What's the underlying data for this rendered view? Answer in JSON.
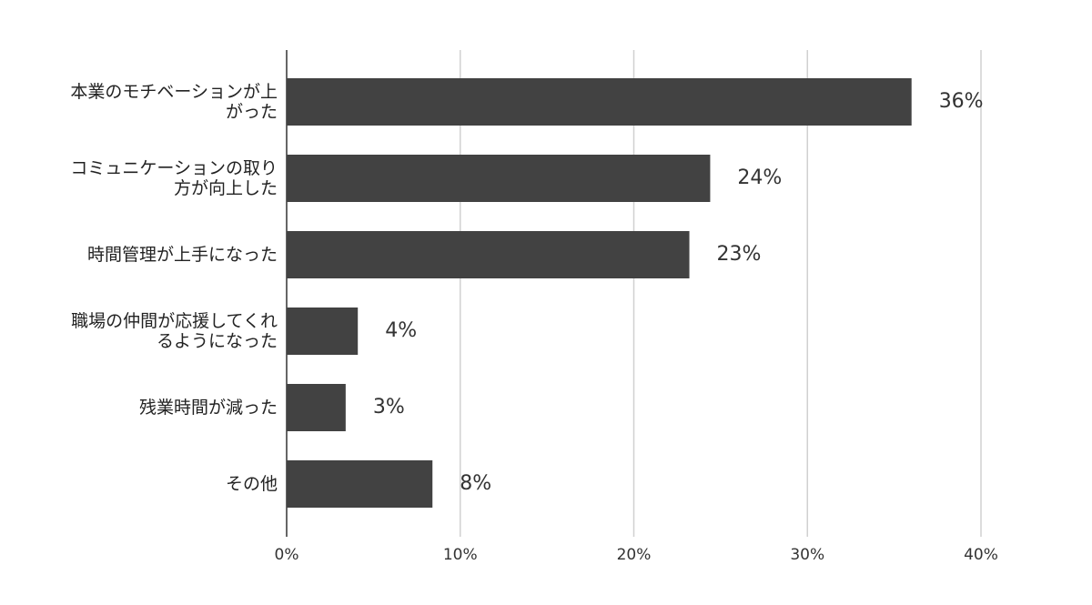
{
  "chart_data": {
    "type": "bar",
    "orientation": "horizontal",
    "categories": [
      "本業のモチベーションが上がった",
      "コミュニケーションの取り方が向上した",
      "時間管理が上手になった",
      "職場の仲間が応援してくれるようになった",
      "残業時間が減った",
      "その他"
    ],
    "values": [
      36,
      24.4,
      23.2,
      4.1,
      3.4,
      8.4
    ],
    "value_labels": [
      "36%",
      "24%",
      "23%",
      "4%",
      "3%",
      "8%"
    ],
    "color": "#424242",
    "xlim": [
      0,
      40
    ],
    "xticks": [
      {
        "value": 0,
        "label": "0%"
      },
      {
        "value": 10,
        "label": "10%"
      },
      {
        "value": 20,
        "label": "20%"
      },
      {
        "value": 30,
        "label": "30%"
      },
      {
        "value": 40,
        "label": "40%"
      }
    ],
    "grid": true
  }
}
